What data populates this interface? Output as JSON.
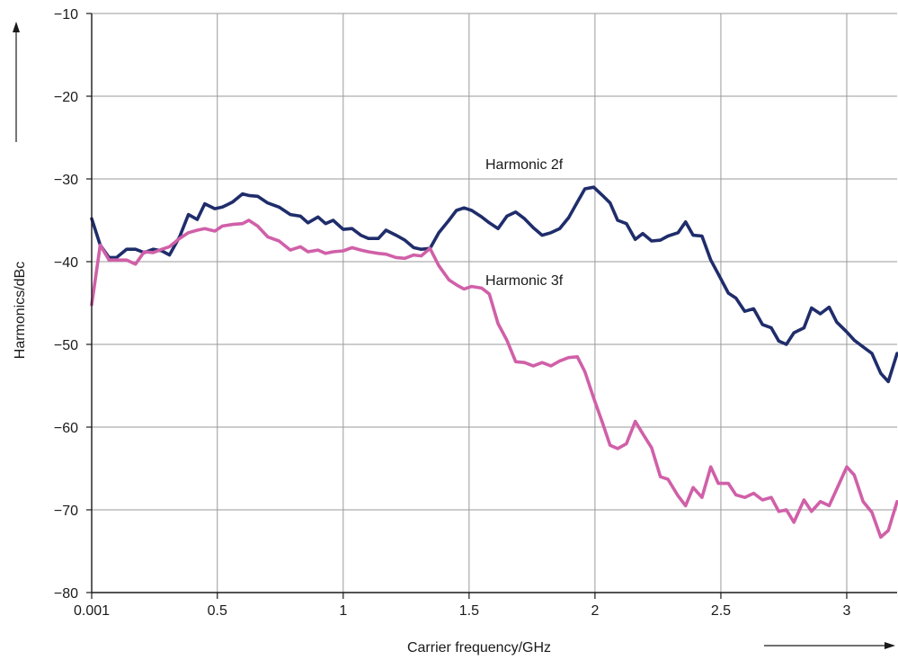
{
  "chart_data": {
    "type": "line",
    "title": "",
    "xlabel": "Carrier frequency/GHz",
    "ylabel": "Harmonics/dBc",
    "xlim": [
      0.001,
      3.2
    ],
    "ylim": [
      -80,
      -10
    ],
    "x_ticks": [
      0.001,
      0.5,
      1,
      1.5,
      2,
      2.5,
      3
    ],
    "x_tick_labels": [
      "0.001",
      "0.5",
      "1",
      "1.5",
      "2",
      "2.5",
      "3"
    ],
    "y_ticks": [
      -80,
      -70,
      -60,
      -50,
      -40,
      -30,
      -20,
      -10
    ],
    "y_tick_labels": [
      "−80",
      "−70",
      "−60",
      "−50",
      "−40",
      "−30",
      "−20",
      "−10"
    ],
    "grid": true,
    "annotations": [
      {
        "text": "Harmonic 2f",
        "x": 1.85,
        "y": -28.5
      },
      {
        "text": "Harmonic 3f",
        "x": 1.85,
        "y": -42.5
      }
    ],
    "series": [
      {
        "name": "Harmonic 2f",
        "color": "#1f2d6b",
        "x": [
          0.001,
          0.035,
          0.07,
          0.1,
          0.14,
          0.175,
          0.21,
          0.245,
          0.28,
          0.31,
          0.35,
          0.385,
          0.42,
          0.45,
          0.49,
          0.52,
          0.56,
          0.6,
          0.625,
          0.66,
          0.7,
          0.745,
          0.79,
          0.83,
          0.86,
          0.9,
          0.93,
          0.96,
          1.0,
          1.035,
          1.07,
          1.1,
          1.14,
          1.17,
          1.21,
          1.245,
          1.28,
          1.31,
          1.345,
          1.38,
          1.42,
          1.45,
          1.48,
          1.51,
          1.55,
          1.58,
          1.615,
          1.65,
          1.685,
          1.72,
          1.755,
          1.79,
          1.825,
          1.86,
          1.895,
          1.93,
          1.96,
          1.995,
          2.03,
          2.06,
          2.09,
          2.125,
          2.16,
          2.19,
          2.225,
          2.26,
          2.29,
          2.33,
          2.36,
          2.39,
          2.425,
          2.46,
          2.49,
          2.53,
          2.56,
          2.595,
          2.63,
          2.665,
          2.7,
          2.73,
          2.76,
          2.79,
          2.83,
          2.86,
          2.895,
          2.93,
          2.96,
          3.0,
          3.03,
          3.065,
          3.1,
          3.135,
          3.165,
          3.2
        ],
        "y": [
          -34.8,
          -38.0,
          -39.5,
          -39.5,
          -38.5,
          -38.5,
          -38.9,
          -38.5,
          -38.7,
          -39.2,
          -37.0,
          -34.3,
          -34.9,
          -33.0,
          -33.6,
          -33.4,
          -32.8,
          -31.8,
          -32.0,
          -32.1,
          -32.9,
          -33.4,
          -34.3,
          -34.5,
          -35.3,
          -34.6,
          -35.4,
          -35.0,
          -36.1,
          -36.0,
          -36.8,
          -37.2,
          -37.2,
          -36.2,
          -36.8,
          -37.4,
          -38.3,
          -38.5,
          -38.4,
          -36.5,
          -35.0,
          -33.8,
          -33.5,
          -33.8,
          -34.6,
          -35.3,
          -36.0,
          -34.5,
          -34.0,
          -34.8,
          -35.9,
          -36.8,
          -36.5,
          -36.0,
          -34.7,
          -32.8,
          -31.2,
          -31.0,
          -32.0,
          -32.9,
          -35.0,
          -35.4,
          -37.3,
          -36.6,
          -37.5,
          -37.4,
          -36.9,
          -36.5,
          -35.2,
          -36.8,
          -36.9,
          -39.8,
          -41.5,
          -43.8,
          -44.4,
          -46.0,
          -45.7,
          -47.6,
          -48.0,
          -49.6,
          -50.0,
          -48.6,
          -48.0,
          -45.6,
          -46.3,
          -45.5,
          -47.3,
          -48.5,
          -49.5,
          -50.3,
          -51.1,
          -53.5,
          -54.5,
          -51.1
        ]
      },
      {
        "name": "Harmonic 3f",
        "color": "#d060a8",
        "x": [
          0.001,
          0.035,
          0.07,
          0.1,
          0.14,
          0.175,
          0.21,
          0.245,
          0.28,
          0.31,
          0.35,
          0.385,
          0.42,
          0.45,
          0.49,
          0.52,
          0.56,
          0.6,
          0.625,
          0.66,
          0.7,
          0.745,
          0.79,
          0.83,
          0.86,
          0.9,
          0.93,
          0.96,
          1.0,
          1.035,
          1.07,
          1.1,
          1.14,
          1.17,
          1.21,
          1.245,
          1.28,
          1.31,
          1.345,
          1.38,
          1.42,
          1.45,
          1.48,
          1.51,
          1.55,
          1.58,
          1.615,
          1.65,
          1.685,
          1.72,
          1.755,
          1.79,
          1.825,
          1.86,
          1.895,
          1.93,
          1.96,
          1.995,
          2.03,
          2.06,
          2.09,
          2.125,
          2.16,
          2.19,
          2.225,
          2.26,
          2.29,
          2.33,
          2.36,
          2.39,
          2.425,
          2.46,
          2.49,
          2.53,
          2.56,
          2.595,
          2.63,
          2.665,
          2.7,
          2.73,
          2.76,
          2.79,
          2.83,
          2.86,
          2.895,
          2.93,
          2.96,
          3.0,
          3.03,
          3.065,
          3.1,
          3.135,
          3.165,
          3.2
        ],
        "y": [
          -45.2,
          -38.0,
          -39.8,
          -39.8,
          -39.8,
          -40.3,
          -38.8,
          -38.9,
          -38.5,
          -38.2,
          -37.2,
          -36.5,
          -36.2,
          -36.0,
          -36.3,
          -35.7,
          -35.5,
          -35.4,
          -35.0,
          -35.7,
          -37.0,
          -37.5,
          -38.6,
          -38.2,
          -38.8,
          -38.6,
          -39.0,
          -38.8,
          -38.7,
          -38.3,
          -38.6,
          -38.8,
          -39.0,
          -39.1,
          -39.5,
          -39.6,
          -39.2,
          -39.3,
          -38.4,
          -40.5,
          -42.2,
          -42.8,
          -43.3,
          -43.0,
          -43.2,
          -43.9,
          -47.5,
          -49.5,
          -52.1,
          -52.2,
          -52.6,
          -52.2,
          -52.6,
          -52.0,
          -51.6,
          -51.5,
          -53.3,
          -56.5,
          -59.5,
          -62.2,
          -62.6,
          -62.0,
          -59.3,
          -60.8,
          -62.5,
          -66.0,
          -66.3,
          -68.3,
          -69.5,
          -67.3,
          -68.5,
          -64.8,
          -66.8,
          -66.8,
          -68.2,
          -68.5,
          -68.0,
          -68.8,
          -68.5,
          -70.2,
          -70.0,
          -71.5,
          -68.8,
          -70.2,
          -69.0,
          -69.5,
          -67.5,
          -64.8,
          -65.8,
          -69.0,
          -70.3,
          -73.3,
          -72.5,
          -69.0
        ]
      }
    ]
  }
}
